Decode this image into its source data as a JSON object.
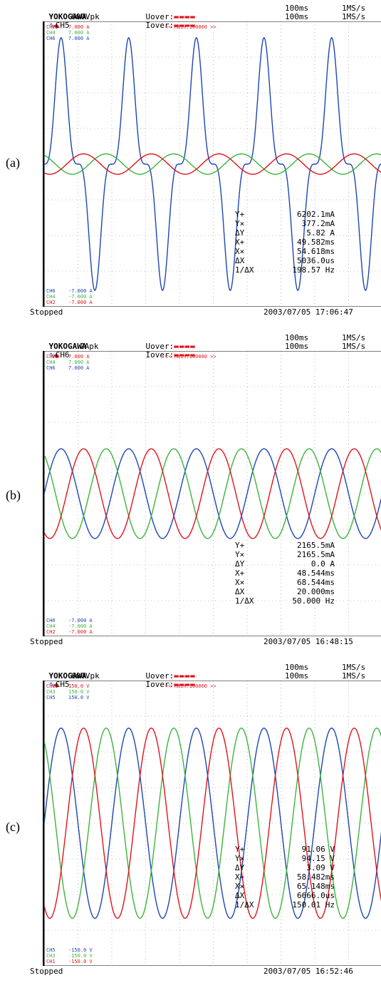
{
  "panels": [
    {
      "label": "(a)",
      "brand": "YOKOGAWA",
      "channel": "CH5",
      "range": "600Vpk",
      "uover": "Uover:",
      "iover": "Iover:",
      "timebase1": "100ms",
      "timebase2": "100ms",
      "samplerate1": "1MS/s",
      "samplerate2": "1MS/s",
      "main_label": "<< Main:100000 >>",
      "top_channels": [
        {
          "name": "CH2",
          "value": "7.000 A",
          "color": "#e0141c"
        },
        {
          "name": "CH4",
          "value": "7.000 A",
          "color": "#3cb43c"
        },
        {
          "name": "CH6",
          "value": "7.000 A",
          "color": "#1e46b4"
        }
      ],
      "bottom_channels": [
        {
          "name": "CH6",
          "value": "-7.000 A",
          "color": "#1e46b4"
        },
        {
          "name": "CH4",
          "value": "-7.000 A",
          "color": "#3cb43c"
        },
        {
          "name": "CH2",
          "value": "-7.000 A",
          "color": "#e0141c"
        }
      ],
      "status": "Stopped",
      "timestamp": "2003/07/05 17:06:47",
      "cursor": [
        {
          "k": "Y+",
          "v": "6202.1mA"
        },
        {
          "k": "Y×",
          "v": "377.2mA"
        },
        {
          "k": "ΔY",
          "v": "5.82 A"
        },
        {
          "k": "X+",
          "v": "49.582ms"
        },
        {
          "k": "X×",
          "v": "54.618ms"
        },
        {
          "k": "ΔX",
          "v": "5036.0us"
        },
        {
          "k": "1/ΔX",
          "v": "198.57 Hz"
        }
      ]
    },
    {
      "label": "(b)",
      "brand": "YOKOGAWA",
      "channel": "CH6",
      "range": "2Apk",
      "uover": "Uover:",
      "iover": "Iover:",
      "timebase1": "100ms",
      "timebase2": "100ms",
      "samplerate1": "1MS/s",
      "samplerate2": "1MS/s",
      "main_label": "<< Main:100000 >>",
      "top_channels": [
        {
          "name": "CH2",
          "value": "7.000 A",
          "color": "#e0141c"
        },
        {
          "name": "CH4",
          "value": "7.000 A",
          "color": "#3cb43c"
        },
        {
          "name": "CH6",
          "value": "7.000 A",
          "color": "#1e46b4"
        }
      ],
      "bottom_channels": [
        {
          "name": "CH6",
          "value": "-7.000 A",
          "color": "#1e46b4"
        },
        {
          "name": "CH4",
          "value": "-7.000 A",
          "color": "#3cb43c"
        },
        {
          "name": "CH2",
          "value": "-7.000 A",
          "color": "#e0141c"
        }
      ],
      "status": "Stopped",
      "timestamp": "2003/07/05 16:48:15",
      "cursor": [
        {
          "k": "Y+",
          "v": "2165.5mA"
        },
        {
          "k": "Y×",
          "v": "2165.5mA"
        },
        {
          "k": "ΔY",
          "v": "0.0 A"
        },
        {
          "k": "X+",
          "v": "48.544ms"
        },
        {
          "k": "X×",
          "v": "68.544ms"
        },
        {
          "k": "ΔX",
          "v": "20.000ms"
        },
        {
          "k": "1/ΔX",
          "v": "50.000 Hz"
        }
      ]
    },
    {
      "label": "(c)",
      "brand": "YOKOGAWA",
      "channel": "CH5",
      "range": "600Vpk",
      "uover": "Uover:",
      "iover": "Iover:",
      "timebase1": "100ms",
      "timebase2": "100ms",
      "samplerate1": "1MS/s",
      "samplerate2": "1MS/s",
      "main_label": "<< Main:100000 >>",
      "top_channels": [
        {
          "name": "CH1",
          "value": "150.0 V",
          "color": "#e0141c"
        },
        {
          "name": "CH3",
          "value": "150.0 V",
          "color": "#3cb43c"
        },
        {
          "name": "CH5",
          "value": "150.0 V",
          "color": "#1e46b4"
        }
      ],
      "bottom_channels": [
        {
          "name": "CH5",
          "value": "-150.0 V",
          "color": "#1e46b4"
        },
        {
          "name": "CH3",
          "value": "-150.0 V",
          "color": "#3cb43c"
        },
        {
          "name": "CH1",
          "value": "-150.0 V",
          "color": "#e0141c"
        }
      ],
      "status": "Stopped",
      "timestamp": "2003/07/05 16:52:46",
      "cursor": [
        {
          "k": "Y+",
          "v": "91.06 V"
        },
        {
          "k": "Y×",
          "v": "94.15 V"
        },
        {
          "k": "ΔY",
          "v": "3.09 V"
        },
        {
          "k": "X+",
          "v": "58.482ms"
        },
        {
          "k": "X×",
          "v": "65.148ms"
        },
        {
          "k": "ΔX",
          "v": "6666.0us"
        },
        {
          "k": "1/ΔX",
          "v": "150.01 Hz"
        }
      ]
    }
  ],
  "chart_data": [
    {
      "type": "line",
      "panel": "(a)",
      "xlim": [
        0,
        100
      ],
      "ylim": [
        -7,
        7
      ],
      "x_unit": "ms",
      "y_unit": "A",
      "grid": true,
      "series": [
        {
          "name": "CH6",
          "color": "#1e46b4",
          "shape": "pulse",
          "amplitude": 6.2,
          "frequency_hz": 50,
          "phase_deg": 0
        },
        {
          "name": "CH4",
          "color": "#3cb43c",
          "shape": "sine",
          "amplitude": 0.5,
          "frequency_hz": 50,
          "phase_deg": 120
        },
        {
          "name": "CH2",
          "color": "#e0141c",
          "shape": "sine",
          "amplitude": 0.5,
          "frequency_hz": 50,
          "phase_deg": 240
        }
      ]
    },
    {
      "type": "line",
      "panel": "(b)",
      "xlim": [
        0,
        100
      ],
      "ylim": [
        -7,
        7
      ],
      "x_unit": "ms",
      "y_unit": "A",
      "grid": true,
      "series": [
        {
          "name": "CH6",
          "color": "#1e46b4",
          "shape": "sine",
          "amplitude": 2.2,
          "frequency_hz": 50,
          "phase_deg": 0
        },
        {
          "name": "CH4",
          "color": "#3cb43c",
          "shape": "sine",
          "amplitude": 2.2,
          "frequency_hz": 50,
          "phase_deg": 120
        },
        {
          "name": "CH2",
          "color": "#e0141c",
          "shape": "sine",
          "amplitude": 2.2,
          "frequency_hz": 50,
          "phase_deg": 240
        }
      ]
    },
    {
      "type": "line",
      "panel": "(c)",
      "xlim": [
        0,
        100
      ],
      "ylim": [
        -150,
        150
      ],
      "x_unit": "ms",
      "y_unit": "V",
      "grid": true,
      "series": [
        {
          "name": "CH5",
          "color": "#1e46b4",
          "shape": "sine",
          "amplitude": 100,
          "frequency_hz": 50,
          "phase_deg": 0
        },
        {
          "name": "CH3",
          "color": "#3cb43c",
          "shape": "sine",
          "amplitude": 100,
          "frequency_hz": 50,
          "phase_deg": 120
        },
        {
          "name": "CH1",
          "color": "#e0141c",
          "shape": "sine",
          "amplitude": 100,
          "frequency_hz": 50,
          "phase_deg": 240
        }
      ]
    }
  ]
}
